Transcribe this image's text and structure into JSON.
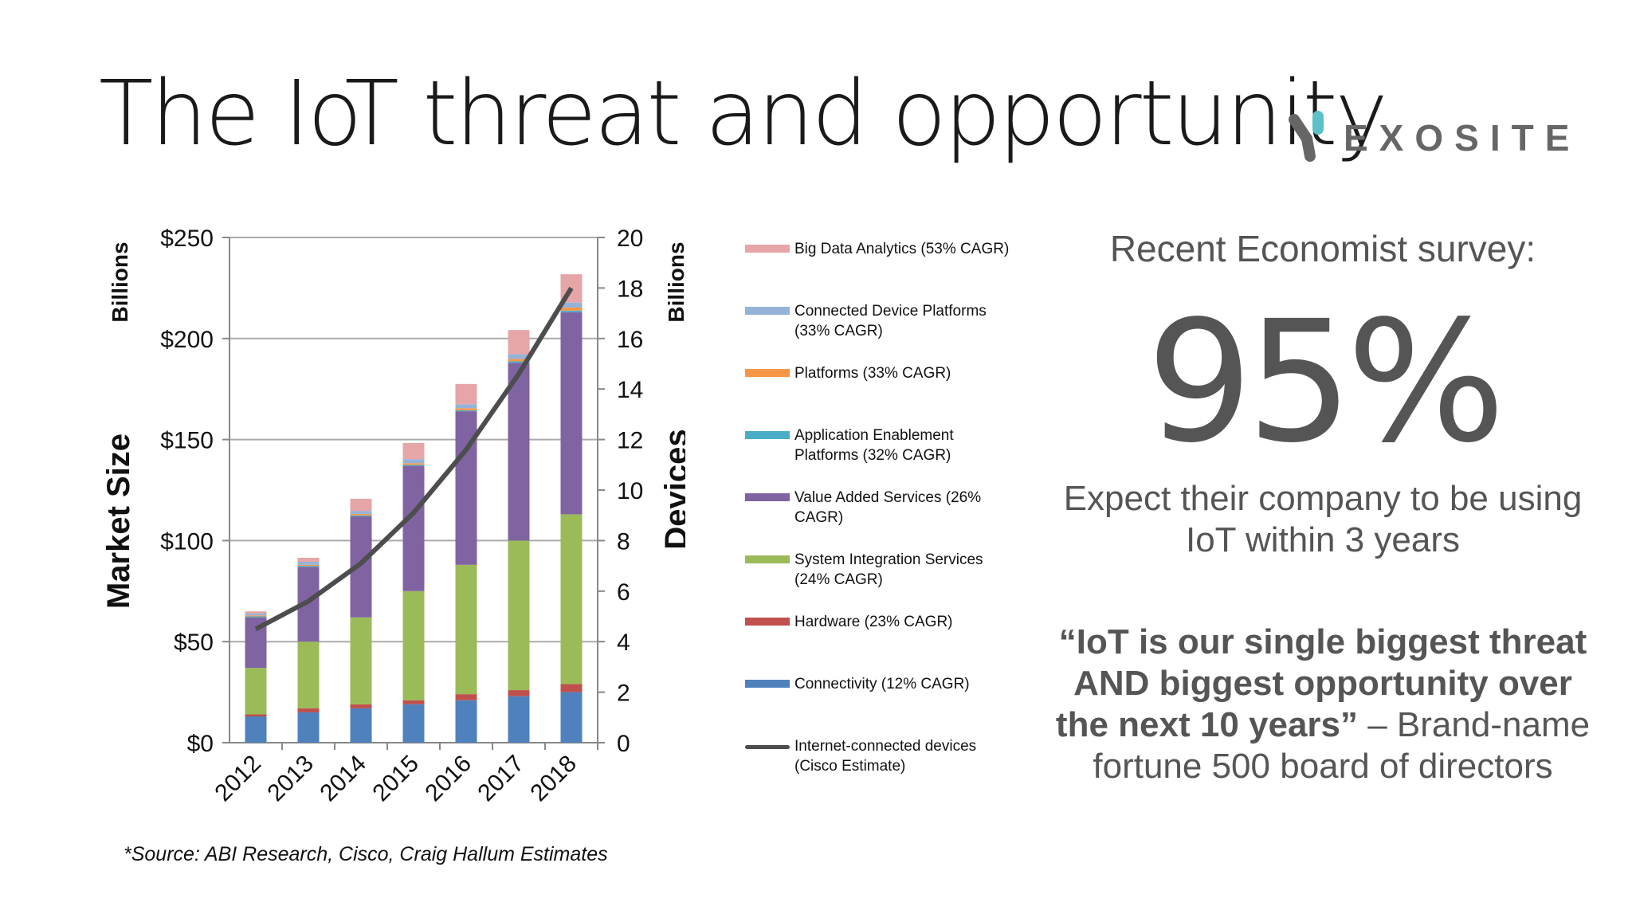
{
  "title": "The IoT threat and opportunity",
  "logo": {
    "text": "EXOSITE",
    "icon": "exosite-logo-icon",
    "accent": "#5BC0C8",
    "gray": "#666666"
  },
  "right_panel": {
    "survey_heading": "Recent Economist survey:",
    "big_stat": "95%",
    "stat_caption": "Expect their company to be using IoT within 3 years",
    "quote_bold": "“IoT is our single biggest threat AND biggest opportunity over the next 10 years”",
    "quote_attribution": " – Brand-name fortune 500 board of directors"
  },
  "source_note": "*Source: ABI Research, Cisco, Craig Hallum Estimates",
  "chart_data": {
    "type": "bar",
    "stacked": true,
    "categories": [
      "2012",
      "2013",
      "2014",
      "2015",
      "2016",
      "2017",
      "2018"
    ],
    "y_left": {
      "label": "Market Size",
      "unit_label": "Billions",
      "min": 0,
      "max": 250,
      "ticks": [
        0,
        50,
        100,
        150,
        200,
        250
      ],
      "tick_labels": [
        "$0",
        "$50",
        "$100",
        "$150",
        "$200",
        "$250"
      ]
    },
    "y_right": {
      "label": "Devices",
      "unit_label": "Billions",
      "min": 0,
      "max": 20,
      "ticks": [
        0,
        2,
        4,
        6,
        8,
        10,
        12,
        14,
        16,
        18,
        20
      ],
      "tick_labels": [
        "0",
        "2",
        "4",
        "6",
        "8",
        "10",
        "12",
        "14",
        "16",
        "18",
        "20"
      ]
    },
    "grid": true,
    "series": [
      {
        "name": "Connectivity (12% CAGR)",
        "color": "#4F81BD",
        "values": [
          13,
          15,
          17,
          19,
          21,
          23,
          25
        ]
      },
      {
        "name": "Hardware (23% CAGR)",
        "color": "#C0504D",
        "values": [
          1,
          2,
          2,
          2,
          3,
          3,
          4
        ]
      },
      {
        "name": "System Integration Services (24% CAGR)",
        "color": "#9BBB59",
        "values": [
          23,
          33,
          43,
          54,
          64,
          74,
          84
        ]
      },
      {
        "name": "Value Added Services (26% CAGR)",
        "color": "#8064A2",
        "values": [
          25,
          37,
          50,
          62,
          76,
          88,
          100
        ]
      },
      {
        "name": "Application Enablement Platforms (32% CAGR)",
        "color": "#4BACC6",
        "values": [
          0.5,
          0.5,
          0.5,
          0.5,
          0.5,
          0.7,
          0.8
        ]
      },
      {
        "name": "Platforms (33% CAGR)",
        "color": "#F79646",
        "values": [
          0.5,
          0.5,
          0.7,
          0.8,
          1,
          1.2,
          1.5
        ]
      },
      {
        "name": "Connected Device Platforms (33% CAGR)",
        "color": "#95B3D7",
        "values": [
          1,
          1.5,
          1.5,
          2,
          2,
          2.3,
          2.5
        ]
      },
      {
        "name": "Big Data Analytics (53% CAGR)",
        "color": "#E6A5A7",
        "values": [
          1,
          2,
          6,
          8,
          10,
          12,
          14
        ]
      }
    ],
    "line_series": {
      "name": "Internet-connected devices (Cisco Estimate)",
      "color": "#4D4D4D",
      "axis": "right",
      "values": [
        4.5,
        5.6,
        7.1,
        9.1,
        11.6,
        14.6,
        18.0
      ]
    },
    "legend": {
      "position": "right",
      "entries": [
        "Big Data Analytics (53% CAGR)",
        "Connected Device Platforms (33% CAGR)",
        "Platforms (33% CAGR)",
        "Application Enablement Platforms (32% CAGR)",
        "Value Added Services (26% CAGR)",
        "System Integration Services (24% CAGR)",
        "Hardware (23% CAGR)",
        "Connectivity (12% CAGR)",
        "Internet-connected devices (Cisco Estimate)"
      ]
    }
  }
}
